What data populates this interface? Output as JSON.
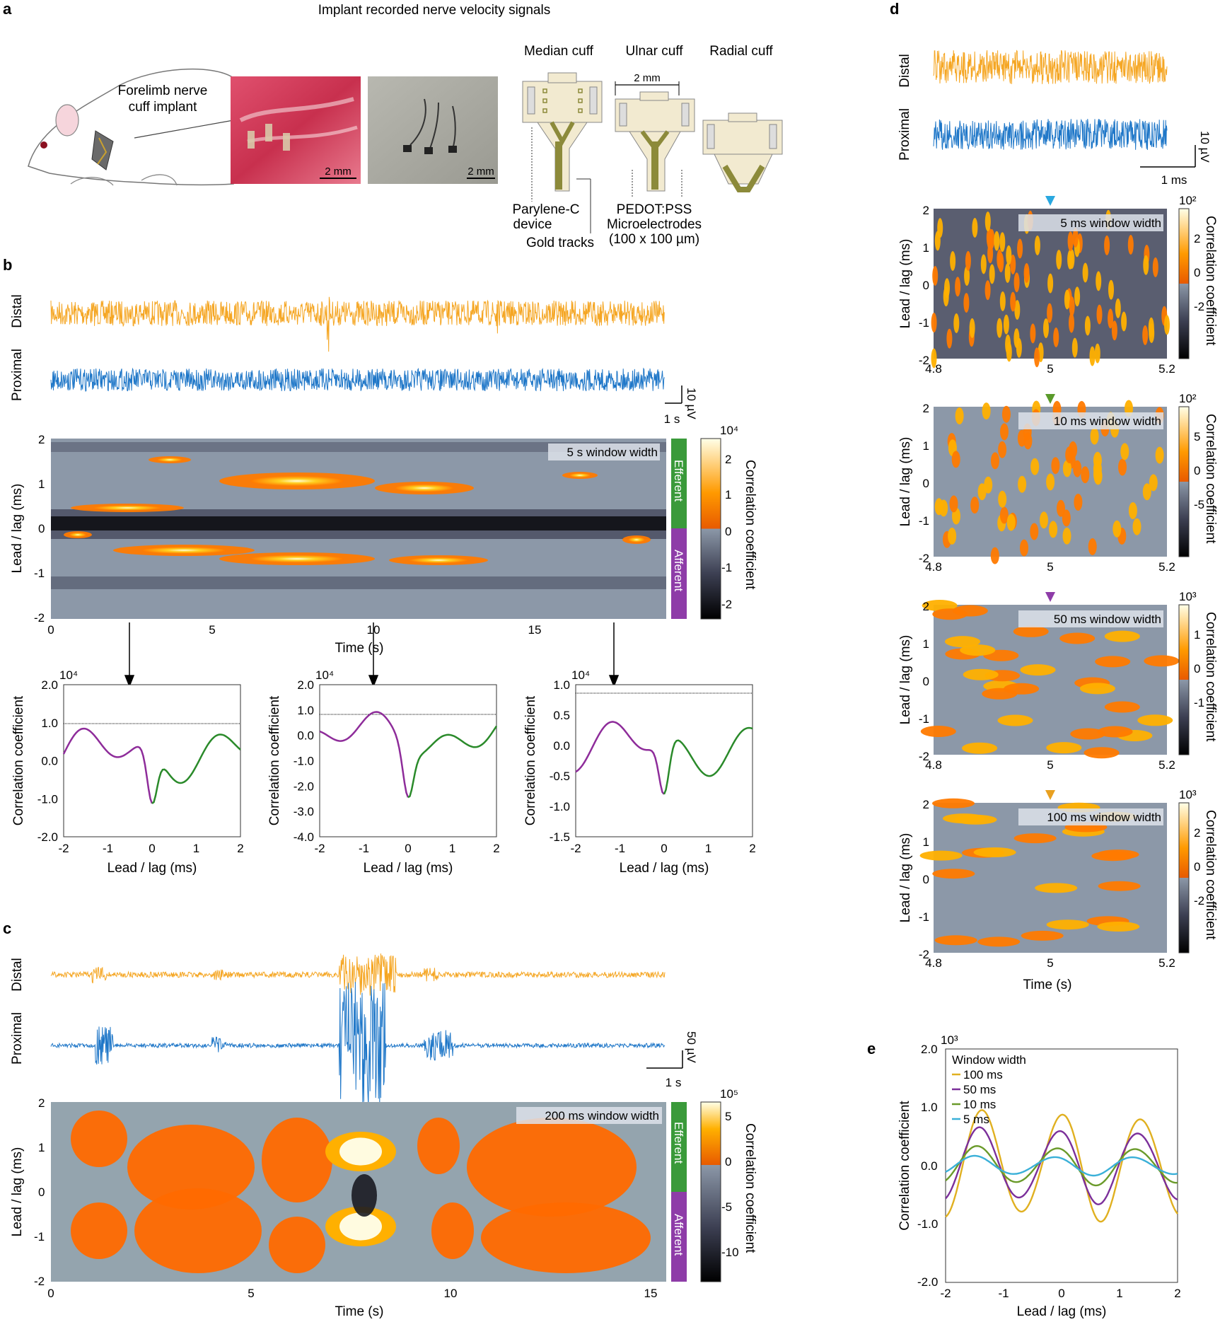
{
  "figure": {
    "panel_a": {
      "letter": "a",
      "title": "Implant recorded nerve velocity signals",
      "rat_label_1": "Forelimb nerve",
      "rat_label_2": "cuff implant",
      "scalebar_photo1": "2 mm",
      "scalebar_photo2": "2 mm",
      "cuff_titles": [
        "Median cuff",
        "Ulnar cuff",
        "Radial cuff"
      ],
      "ulnar_width": "2 mm",
      "device_label_1": "Parylene-C",
      "device_label_2": "device",
      "gold_label": "Gold tracks",
      "electrode_label_1": "PEDOT:PSS",
      "electrode_label_2": "Microelectrodes",
      "electrode_label_3": "(100 x 100 µm)",
      "colors": {
        "tissue": "#d9466a",
        "cuff": "#f2ead0",
        "track": "#8c8a3a"
      }
    },
    "panel_b": {
      "letter": "b",
      "trace_labels": [
        "Distal",
        "Proximal"
      ],
      "scale_v": "10 µV",
      "scale_t": "1 s",
      "window_label": "5 s window width",
      "efferent": "Efferent",
      "afferent": "Afferent",
      "colorbar_exp": "10⁴",
      "colorbar_ticks": [
        "2",
        "1",
        "0",
        "-1",
        "-2"
      ],
      "colorbar_label": "Correlation coefficient",
      "y_label": "Lead / lag (ms)",
      "y_ticks": [
        "2",
        "1",
        "0",
        "-1",
        "-2"
      ],
      "x_label": "Time (s)",
      "x_ticks": [
        "0",
        "5",
        "10",
        "15"
      ],
      "colors": {
        "distal": "#f5a623",
        "proximal": "#1f77c8",
        "efferent": "#3a9a3a",
        "afferent": "#8e3ca8"
      }
    },
    "panel_b_sub": [
      {
        "exp": "10⁴",
        "yticks": [
          "2.0",
          "1.0",
          "0.0",
          "-1.0",
          "-2.0"
        ],
        "ylabel": "Correlation coefficient",
        "xlabel": "Lead / lag (ms)",
        "xticks": [
          "-2",
          "-1",
          "0",
          "1",
          "2"
        ]
      },
      {
        "exp": "10⁴",
        "yticks": [
          "2.0",
          "1.0",
          "0.0",
          "-1.0",
          "-2.0",
          "-3.0",
          "-4.0"
        ],
        "ylabel": "Correlation coefficient",
        "xlabel": "Lead / lag (ms)",
        "xticks": [
          "-2",
          "-1",
          "0",
          "1",
          "2"
        ]
      },
      {
        "exp": "10⁴",
        "yticks": [
          "1.0",
          "0.5",
          "0.0",
          "-0.5",
          "-1.0",
          "-1.5"
        ],
        "ylabel": "Correlation coefficient",
        "xlabel": "Lead / lag (ms)",
        "xticks": [
          "-2",
          "-1",
          "0",
          "1",
          "2"
        ]
      }
    ],
    "panel_c": {
      "letter": "c",
      "trace_labels": [
        "Distal",
        "Proximal"
      ],
      "scale_v": "50 µV",
      "scale_t": "1 s",
      "window_label": "200 ms window width",
      "efferent": "Efferent",
      "afferent": "Afferent",
      "colorbar_exp": "10⁵",
      "colorbar_ticks": [
        "5",
        "0",
        "-5",
        "-10"
      ],
      "colorbar_label": "Correlation coefficient",
      "y_label": "Lead / lag (ms)",
      "y_ticks": [
        "2",
        "1",
        "0",
        "-1",
        "-2"
      ],
      "x_label": "Time (s)",
      "x_ticks": [
        "0",
        "5",
        "10",
        "15"
      ]
    },
    "panel_d": {
      "letter": "d",
      "trace_labels": [
        "Distal",
        "Proximal"
      ],
      "scale_v": "10 µV",
      "scale_t": "1 ms",
      "heatmaps": [
        {
          "window": "5 ms window width",
          "exp": "10²",
          "ticks": [
            "2",
            "0",
            "-2"
          ],
          "arrow": "#29a8e0"
        },
        {
          "window": "10 ms window width",
          "exp": "10²",
          "ticks": [
            "5",
            "0",
            "-5"
          ],
          "arrow": "#5a9a2a"
        },
        {
          "window": "50 ms window width",
          "exp": "10³",
          "ticks": [
            "1",
            "0",
            "-1"
          ],
          "arrow": "#8e3ca8"
        },
        {
          "window": "100 ms window width",
          "exp": "10³",
          "ticks": [
            "2",
            "0",
            "-2"
          ],
          "arrow": "#e8a020"
        }
      ],
      "colorbar_label": "Correlation coefficient",
      "y_label": "Lead / lag (ms)",
      "y_ticks": [
        "2",
        "1",
        "0",
        "-1",
        "-2"
      ],
      "x_ticks": [
        "4.8",
        "5",
        "5.2"
      ],
      "x_label": "Time (s)"
    },
    "panel_e": {
      "letter": "e",
      "exp": "10³",
      "y_ticks": [
        "2.0",
        "1.0",
        "0.0",
        "-1.0",
        "-2.0"
      ],
      "x_ticks": [
        "-2",
        "-1",
        "0",
        "1",
        "2"
      ],
      "y_label": "Correlation coefficient",
      "x_label": "Lead / lag (ms)",
      "legend_title": "Window width",
      "legend": [
        {
          "name": "100 ms",
          "color": "#e0b020"
        },
        {
          "name": "50 ms",
          "color": "#7b2f9a"
        },
        {
          "name": "10 ms",
          "color": "#6a9a2a"
        },
        {
          "name": "5 ms",
          "color": "#3ab0d8"
        }
      ]
    }
  }
}
